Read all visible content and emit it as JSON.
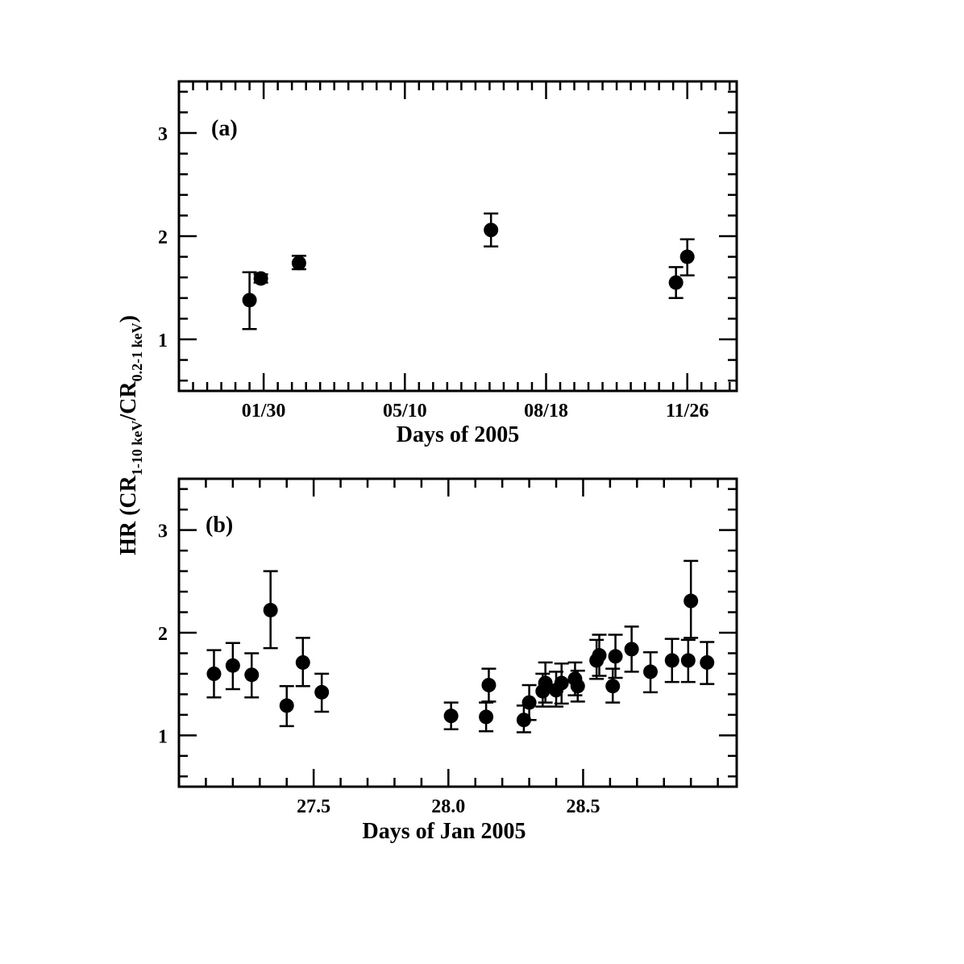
{
  "chart_data": [
    {
      "type": "scatter",
      "panel_label": "(a)",
      "xlabel": "Days of 2005",
      "ylabel": "",
      "xlim": [
        -30,
        365
      ],
      "ylim": [
        0.5,
        3.5
      ],
      "xticks": [
        {
          "value": 30,
          "label": "01/30"
        },
        {
          "value": 130,
          "label": "05/10"
        },
        {
          "value": 230,
          "label": "08/18"
        },
        {
          "value": 330,
          "label": "11/26"
        }
      ],
      "yticks": [
        1,
        2,
        3
      ],
      "grid": false,
      "points": [
        {
          "x": 20,
          "y": 1.38,
          "yerr": [
            1.1,
            1.65
          ]
        },
        {
          "x": 28,
          "y": 1.59,
          "yerr": [
            1.55,
            1.63
          ]
        },
        {
          "x": 55,
          "y": 1.74,
          "yerr": [
            1.68,
            1.81
          ]
        },
        {
          "x": 191,
          "y": 2.06,
          "yerr": [
            1.9,
            2.22
          ]
        },
        {
          "x": 322,
          "y": 1.55,
          "yerr": [
            1.4,
            1.7
          ]
        },
        {
          "x": 330,
          "y": 1.8,
          "yerr": [
            1.62,
            1.97
          ]
        }
      ]
    },
    {
      "type": "scatter",
      "panel_label": "(b)",
      "xlabel": "Days of Jan 2005",
      "ylabel": "HR (CR1-10 keV/CR0.2-1 keV)",
      "ylabel_parts": {
        "pre": "HR (CR",
        "sub1": "1-10 keV",
        "mid": "/CR",
        "sub2": "0.2-1 keV",
        "post": ")"
      },
      "xlim": [
        27.0,
        29.07
      ],
      "ylim": [
        0.5,
        3.5
      ],
      "xticks": [
        {
          "value": 27.5,
          "label": "27.5"
        },
        {
          "value": 28.0,
          "label": "28.0"
        },
        {
          "value": 28.5,
          "label": "28.5"
        }
      ],
      "yticks": [
        1,
        2,
        3
      ],
      "grid": false,
      "points": [
        {
          "x": 27.13,
          "y": 1.6,
          "yerr": [
            1.37,
            1.83
          ]
        },
        {
          "x": 27.2,
          "y": 1.68,
          "yerr": [
            1.45,
            1.9
          ]
        },
        {
          "x": 27.27,
          "y": 1.59,
          "yerr": [
            1.37,
            1.8
          ]
        },
        {
          "x": 27.34,
          "y": 2.22,
          "yerr": [
            1.85,
            2.6
          ]
        },
        {
          "x": 27.4,
          "y": 1.29,
          "yerr": [
            1.09,
            1.48
          ]
        },
        {
          "x": 27.46,
          "y": 1.71,
          "yerr": [
            1.48,
            1.95
          ]
        },
        {
          "x": 27.53,
          "y": 1.42,
          "yerr": [
            1.23,
            1.6
          ]
        },
        {
          "x": 28.01,
          "y": 1.19,
          "yerr": [
            1.06,
            1.32
          ]
        },
        {
          "x": 28.14,
          "y": 1.18,
          "yerr": [
            1.04,
            1.32
          ]
        },
        {
          "x": 28.15,
          "y": 1.49,
          "yerr": [
            1.33,
            1.65
          ]
        },
        {
          "x": 28.28,
          "y": 1.15,
          "yerr": [
            1.03,
            1.29
          ]
        },
        {
          "x": 28.3,
          "y": 1.32,
          "yerr": [
            1.15,
            1.49
          ]
        },
        {
          "x": 28.35,
          "y": 1.43,
          "yerr": [
            1.28,
            1.6
          ]
        },
        {
          "x": 28.36,
          "y": 1.51,
          "yerr": [
            1.32,
            1.71
          ]
        },
        {
          "x": 28.4,
          "y": 1.44,
          "yerr": [
            1.28,
            1.62
          ]
        },
        {
          "x": 28.42,
          "y": 1.51,
          "yerr": [
            1.31,
            1.7
          ]
        },
        {
          "x": 28.47,
          "y": 1.55,
          "yerr": [
            1.39,
            1.71
          ]
        },
        {
          "x": 28.48,
          "y": 1.48,
          "yerr": [
            1.33,
            1.63
          ]
        },
        {
          "x": 28.55,
          "y": 1.73,
          "yerr": [
            1.55,
            1.93
          ]
        },
        {
          "x": 28.56,
          "y": 1.78,
          "yerr": [
            1.58,
            1.98
          ]
        },
        {
          "x": 28.61,
          "y": 1.48,
          "yerr": [
            1.32,
            1.65
          ]
        },
        {
          "x": 28.62,
          "y": 1.77,
          "yerr": [
            1.56,
            1.98
          ]
        },
        {
          "x": 28.68,
          "y": 1.84,
          "yerr": [
            1.62,
            2.06
          ]
        },
        {
          "x": 28.75,
          "y": 1.62,
          "yerr": [
            1.42,
            1.81
          ]
        },
        {
          "x": 28.83,
          "y": 1.73,
          "yerr": [
            1.52,
            1.94
          ]
        },
        {
          "x": 28.89,
          "y": 1.73,
          "yerr": [
            1.52,
            1.93
          ]
        },
        {
          "x": 28.9,
          "y": 2.31,
          "yerr": [
            1.95,
            2.7
          ]
        },
        {
          "x": 28.96,
          "y": 1.71,
          "yerr": [
            1.5,
            1.91
          ]
        }
      ]
    }
  ]
}
